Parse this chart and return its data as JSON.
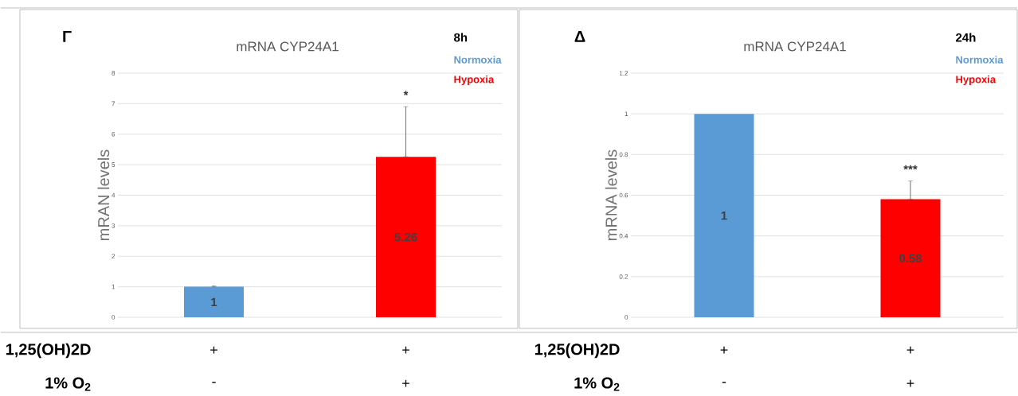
{
  "chart_data": [
    {
      "type": "bar",
      "title": "mRNA CYP24A1",
      "ylabel": "mRAN levels",
      "legend_title": "8h",
      "legend": "top right",
      "grid": "y",
      "categories": [
        null,
        null
      ],
      "ylim": [
        0,
        8
      ],
      "yticks": [
        0,
        1,
        2,
        3,
        4,
        5,
        6,
        7,
        8
      ],
      "series": [
        {
          "name": "Normoxia",
          "color": "#5b9bd5",
          "values": [
            1,
            null
          ],
          "errors": [
            [
              1,
              1.03
            ],
            null
          ],
          "value_labels": [
            "1",
            null
          ]
        },
        {
          "name": "Hypoxia",
          "color": "#ff0000",
          "values": [
            null,
            5.26
          ],
          "errors": [
            null,
            [
              5.26,
              6.9
            ]
          ],
          "value_labels": [
            null,
            "5.26"
          ]
        }
      ],
      "annotations": [
        "Γ",
        "*",
        "1,25(OH)2D",
        "1% O$_{2}$",
        "+",
        "-",
        "+",
        "+"
      ]
    },
    {
      "type": "bar",
      "title": "mRNA CYP24A1",
      "ylabel": "mRNA levels",
      "legend_title": "24h",
      "legend": "top right",
      "grid": "y",
      "categories": [
        null,
        null
      ],
      "ylim": [
        0,
        1.2
      ],
      "yticks": [
        0,
        0.2,
        0.4,
        0.6,
        0.8,
        1,
        1.2
      ],
      "series": [
        {
          "name": "Normoxia",
          "color": "#5b9bd5",
          "values": [
            1,
            null
          ],
          "value_labels": [
            "1",
            null
          ]
        },
        {
          "name": "Hypoxia",
          "color": "#ff0000",
          "values": [
            null,
            0.58
          ],
          "errors": [
            null,
            [
              0.58,
              0.67
            ]
          ],
          "value_labels": [
            null,
            "0.58"
          ]
        }
      ],
      "annotations": [
        "Δ",
        "***",
        "1,25(OH)2D",
        "1% O$_{2}$",
        "+",
        "-",
        "+",
        "+"
      ]
    }
  ]
}
